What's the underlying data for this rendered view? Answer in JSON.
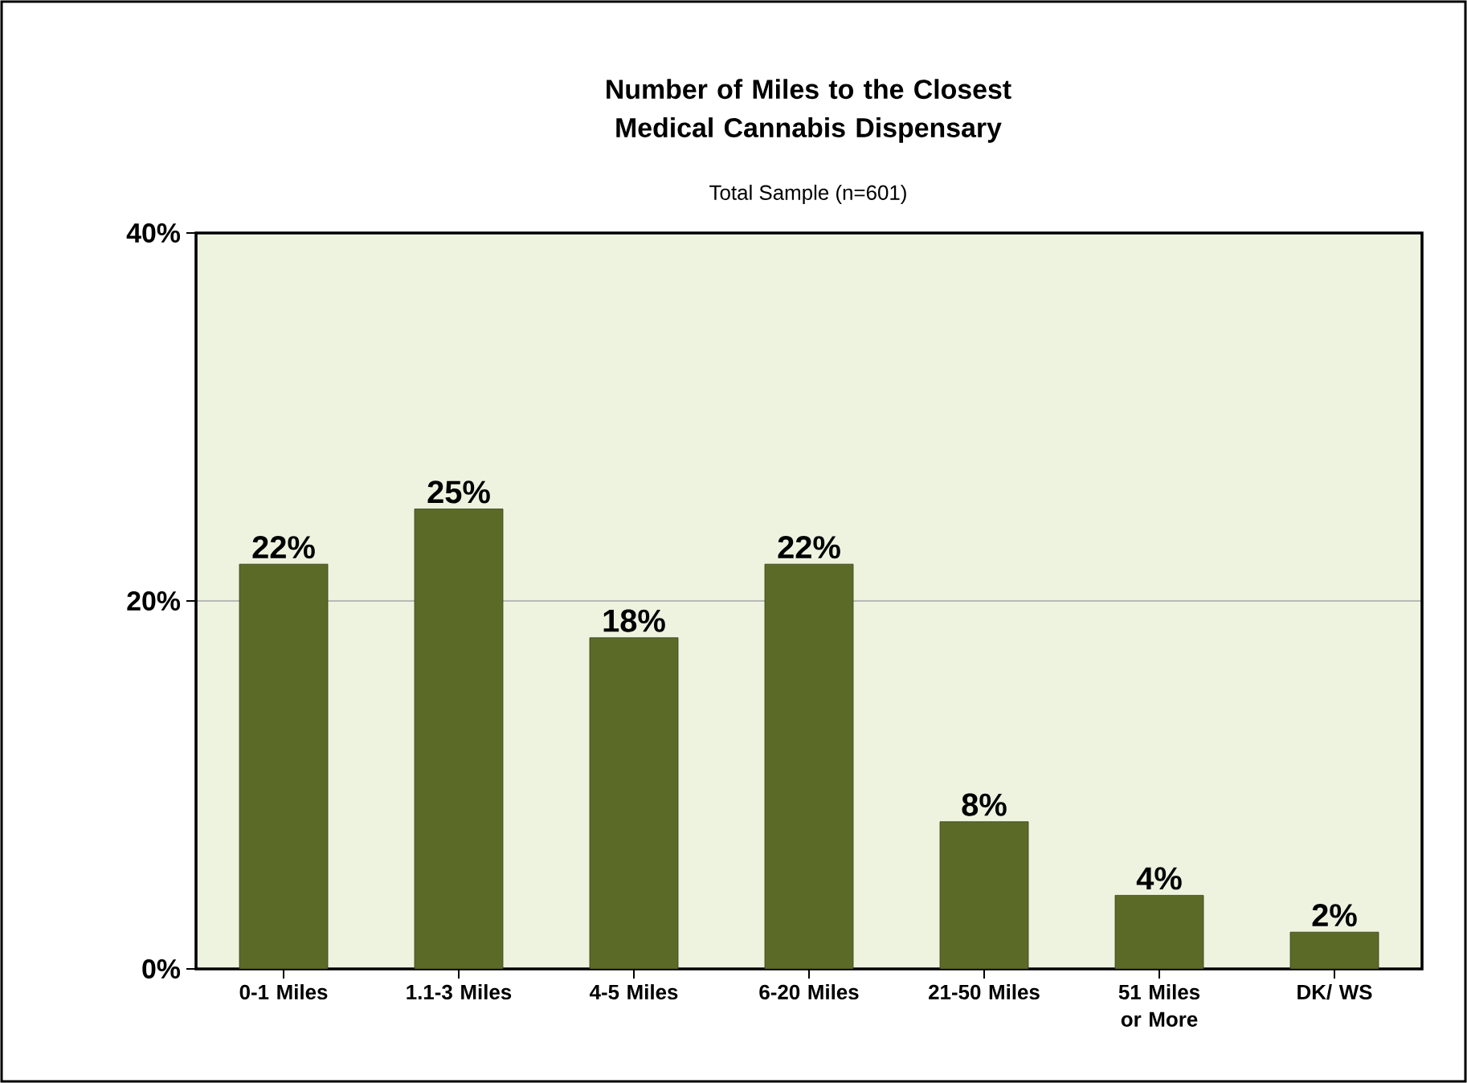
{
  "chart_data": {
    "type": "bar",
    "title": "Number of Miles to the Closest Medical Cannabis Dispensary",
    "subtitle": "Total Sample (n=601)",
    "categories": [
      "0-1 Miles",
      "1.1-3 Miles",
      "4-5 Miles",
      "6-20 Miles",
      "21-50 Miles",
      "51 Miles or More",
      "DK/ WS"
    ],
    "values": [
      22,
      25,
      18,
      22,
      8,
      4,
      2
    ],
    "value_labels": [
      "22%",
      "25%",
      "18%",
      "22%",
      "8%",
      "4%",
      "2%"
    ],
    "color": "#5b6b27",
    "ylim": [
      0,
      40
    ],
    "yticks": [
      {
        "value": 0,
        "label": "0%"
      },
      {
        "value": 20,
        "label": "20%"
      },
      {
        "value": 40,
        "label": "40%"
      }
    ],
    "grid": "y"
  }
}
